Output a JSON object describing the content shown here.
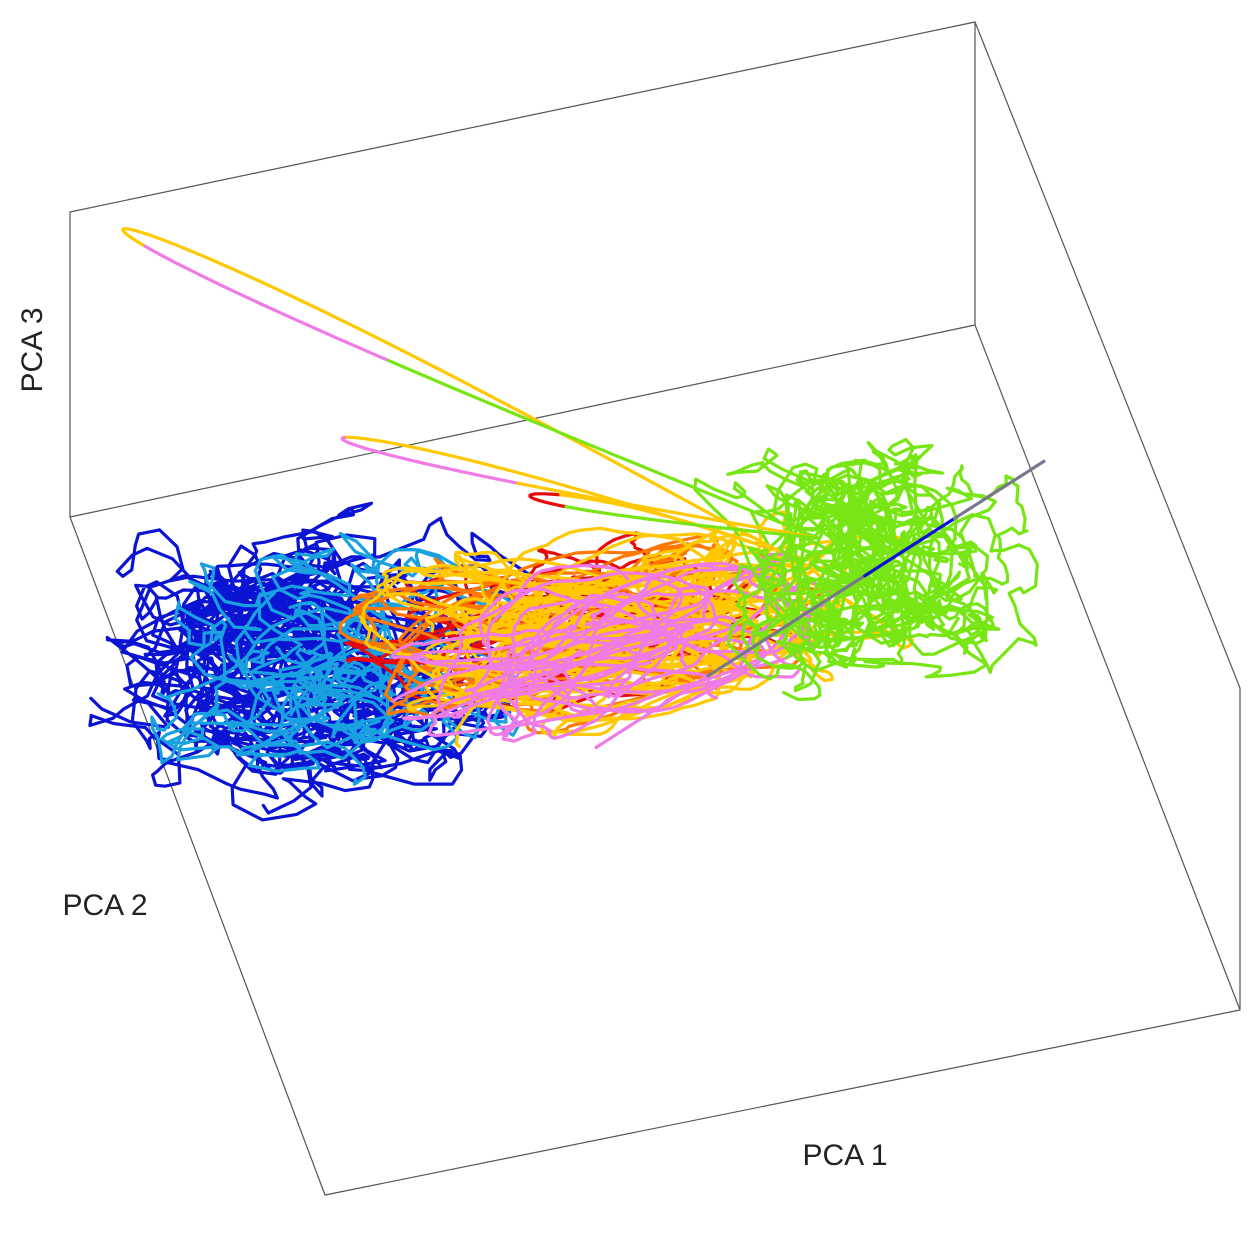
{
  "chart_data": {
    "type": "line",
    "projection": "3d",
    "title": "",
    "xlabel": "PCA 1",
    "ylabel": "PCA 2",
    "zlabel": "PCA 3",
    "grid": false,
    "legend": "none",
    "colors": {
      "box": "#555555",
      "blue": "#0a14d2",
      "cyan": "#19a0e1",
      "red": "#e60a0a",
      "orange": "#ff7800",
      "yellow": "#ffc800",
      "pink": "#f07ae6",
      "green": "#78e614",
      "gray": "#78788c"
    },
    "series": [
      {
        "color": "blue",
        "seed": 11,
        "count": 16,
        "center": [
          -0.55,
          0.25,
          0.32
        ],
        "spread": [
          0.28,
          0.3,
          0.22
        ],
        "wiggle": 0.55
      },
      {
        "color": "cyan",
        "seed": 23,
        "count": 6,
        "center": [
          -0.5,
          0.2,
          0.3
        ],
        "spread": [
          0.28,
          0.3,
          0.2
        ],
        "wiggle": 0.5
      },
      {
        "color": "red",
        "seed": 37,
        "count": 9,
        "center": [
          0.0,
          -0.05,
          0.36
        ],
        "spread": [
          0.38,
          0.22,
          0.12
        ],
        "wiggle": 0.15
      },
      {
        "color": "orange",
        "seed": 41,
        "count": 9,
        "center": [
          0.02,
          -0.05,
          0.36
        ],
        "spread": [
          0.42,
          0.24,
          0.14
        ],
        "wiggle": 0.15
      },
      {
        "color": "yellow",
        "seed": 53,
        "count": 20,
        "center": [
          0.1,
          -0.1,
          0.38
        ],
        "spread": [
          0.45,
          0.26,
          0.16
        ],
        "wiggle": 0.12
      },
      {
        "color": "pink",
        "seed": 67,
        "count": 9,
        "center": [
          0.08,
          -0.1,
          0.33
        ],
        "spread": [
          0.42,
          0.22,
          0.12
        ],
        "wiggle": 0.12
      },
      {
        "color": "green",
        "seed": 79,
        "count": 14,
        "center": [
          0.68,
          -0.3,
          0.48
        ],
        "spread": [
          0.22,
          0.22,
          0.2
        ],
        "wiggle": 0.45
      }
    ],
    "excursions": [
      {
        "segments": [
          [
            "yellow",
            0.6
          ],
          [
            "pink",
            0.2
          ],
          [
            "green",
            0.2
          ]
        ],
        "peak": [
          -0.95,
          0.45,
          1.5
        ]
      },
      {
        "segments": [
          [
            "yellow",
            0.5
          ],
          [
            "pink",
            0.3
          ],
          [
            "yellow",
            0.2
          ]
        ],
        "peak": [
          -0.55,
          0.1,
          0.95
        ]
      },
      {
        "segments": [
          [
            "yellow",
            0.4
          ],
          [
            "red",
            0.3
          ],
          [
            "green",
            0.3
          ]
        ],
        "peak": [
          -0.1,
          -0.05,
          0.75
        ]
      }
    ],
    "stem": {
      "segments": [
        [
          "pink",
          0.25
        ],
        [
          "gray",
          0.35
        ],
        [
          "blue",
          0.2
        ],
        [
          "gray",
          0.2
        ]
      ]
    }
  }
}
